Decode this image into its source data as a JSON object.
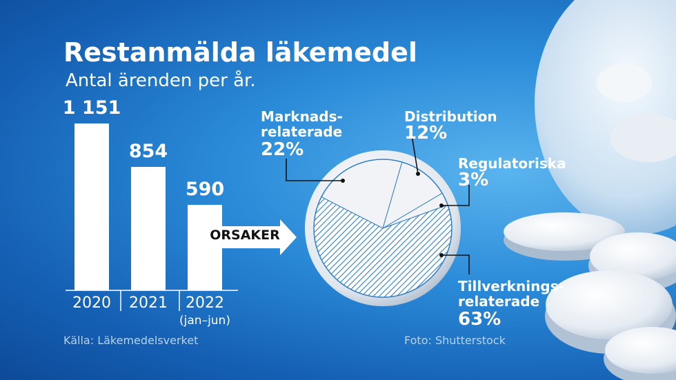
{
  "title": "Restanmälda läkemedel",
  "subtitle": "Antal ärenden per år.",
  "arrow_label": "ORSAKER",
  "source": "Källa: Läkemedelsverket",
  "photo_credit": "Foto: Shutterstock",
  "colors": {
    "background": "#1a6fc8",
    "bars": "#ffffff",
    "pie_base": "#f2f3f6",
    "hatch": "#2f7fc6"
  },
  "chart_data": [
    {
      "type": "bar",
      "title": "Restanmälda läkemedel",
      "subtitle": "Antal ärenden per år.",
      "categories": [
        "2020",
        "2021",
        "2022"
      ],
      "category_sublabels": [
        "",
        "",
        "(jan–jun)"
      ],
      "values": [
        1151,
        854,
        590
      ],
      "value_labels": [
        "1 151",
        "854",
        "590"
      ],
      "grid": false
    },
    {
      "type": "pie",
      "slices": [
        {
          "name": "Marknads-",
          "name2": "relaterade",
          "value": 22,
          "label": "22%",
          "hatched": false
        },
        {
          "name": "Distribution",
          "name2": "",
          "value": 12,
          "label": "12%",
          "hatched": false
        },
        {
          "name": "Regulatoriska",
          "name2": "",
          "value": 3,
          "label": "3%",
          "hatched": false
        },
        {
          "name": "Tillverknings-",
          "name2": "relaterade",
          "value": 63,
          "label": "63%",
          "hatched": true
        }
      ]
    }
  ]
}
